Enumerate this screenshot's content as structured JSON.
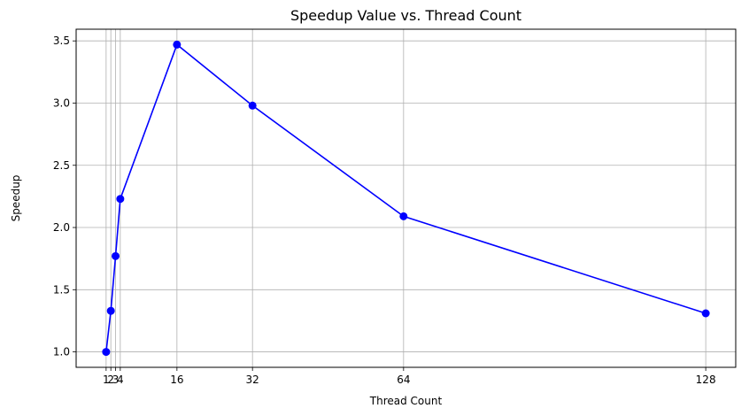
{
  "chart_data": {
    "type": "line",
    "title": "Speedup Value vs. Thread Count",
    "xlabel": "Thread Count",
    "ylabel": "Speedup",
    "x": [
      1,
      2,
      3,
      4,
      16,
      32,
      64,
      128
    ],
    "series": [
      {
        "values": [
          1.0,
          1.33,
          1.77,
          2.23,
          3.47,
          2.98,
          2.09,
          1.31
        ],
        "color": "#0000ff",
        "marker": "circle"
      }
    ],
    "x_ticks": [
      1,
      2,
      3,
      4,
      16,
      32,
      64,
      128
    ],
    "x_tick_labels": [
      "1",
      "2",
      "3",
      "4",
      "16",
      "32",
      "64",
      "128"
    ],
    "y_ticks": [
      1.0,
      1.5,
      2.0,
      2.5,
      3.0,
      3.5
    ],
    "y_tick_labels": [
      "1.0",
      "1.5",
      "2.0",
      "2.5",
      "3.0",
      "3.5"
    ],
    "xlim": [
      -5.35,
      134.35
    ],
    "ylim": [
      0.876,
      3.594
    ],
    "grid": true,
    "grid_color": "#b0b0b0",
    "line_color": "#0000ff"
  }
}
